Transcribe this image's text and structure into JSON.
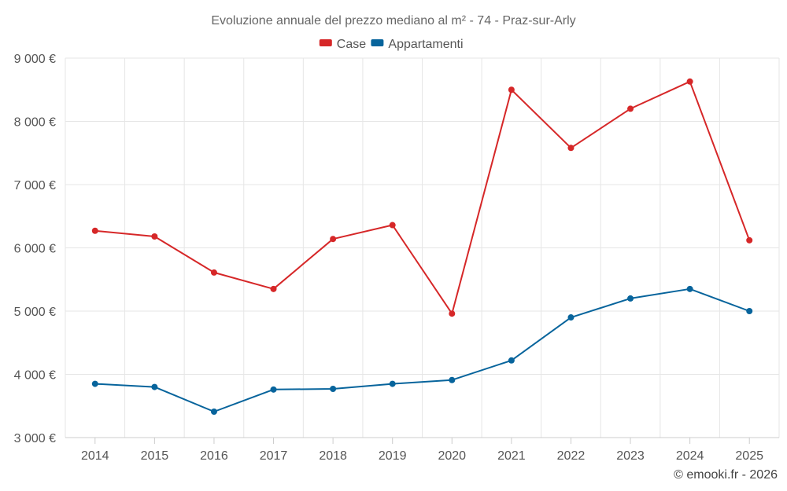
{
  "chart_data": {
    "type": "line",
    "title": "Evoluzione annuale del prezzo mediano al m² - 74 - Praz-sur-Arly",
    "categories": [
      "2014",
      "2015",
      "2016",
      "2017",
      "2018",
      "2019",
      "2020",
      "2021",
      "2022",
      "2023",
      "2024",
      "2025"
    ],
    "series": [
      {
        "name": "Case",
        "color": "#d62728",
        "values": [
          6270,
          6180,
          5610,
          5350,
          6140,
          6360,
          4960,
          8500,
          7580,
          8200,
          8630,
          6120
        ]
      },
      {
        "name": "Appartamenti",
        "color": "#07649c",
        "values": [
          3850,
          3800,
          3410,
          3760,
          3770,
          3850,
          3910,
          4220,
          4900,
          5200,
          5350,
          5000
        ]
      }
    ],
    "ylim": [
      3000,
      9000
    ],
    "yticks": [
      3000,
      4000,
      5000,
      6000,
      7000,
      8000,
      9000
    ],
    "ytick_labels": [
      "3 000 €",
      "4 000 €",
      "5 000 €",
      "6 000 €",
      "7 000 €",
      "8 000 €",
      "9 000 €"
    ],
    "xlabel": "",
    "ylabel": "",
    "grid": true,
    "legend_position": "top-center"
  },
  "credit": "© emooki.fr - 2026"
}
